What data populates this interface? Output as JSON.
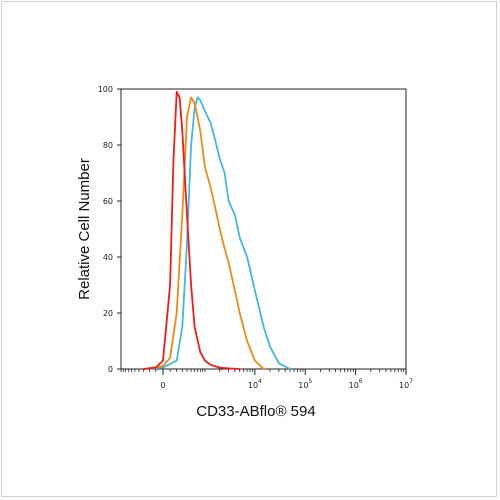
{
  "chart_data": {
    "type": "line",
    "title": "",
    "xlabel": "CD33-ABflo® 594",
    "ylabel": "Relative Cell Number",
    "ylim": [
      0,
      100
    ],
    "y_ticks": [
      "0",
      "20",
      "40",
      "60",
      "80",
      "100"
    ],
    "x_ticks": [
      {
        "base": "0",
        "exp": ""
      },
      {
        "base": "10",
        "exp": "4"
      },
      {
        "base": "10",
        "exp": "5"
      },
      {
        "base": "10",
        "exp": "6"
      },
      {
        "base": "10",
        "exp": "7"
      }
    ],
    "x_scale": "biexponential",
    "x_tick_values": [
      0,
      10000,
      100000,
      1000000,
      10000000
    ],
    "grid": false,
    "legend": "none",
    "series": [
      {
        "color": "#ee1c1c",
        "x": [
          -300,
          -100,
          0,
          100,
          150,
          200,
          250,
          300,
          400,
          500,
          600,
          800,
          1000,
          1300,
          2000,
          3000,
          5000
        ],
        "y": [
          0,
          0.5,
          3,
          30,
          75,
          99,
          97,
          85,
          55,
          30,
          15,
          6,
          3,
          1.5,
          0.5,
          0.2,
          0
        ]
      },
      {
        "color": "#f08a14",
        "x": [
          -300,
          0,
          100,
          200,
          300,
          400,
          500,
          600,
          800,
          1000,
          1300,
          1600,
          2000,
          2500,
          3000,
          4000,
          5000,
          7000,
          10000,
          15000
        ],
        "y": [
          0,
          1,
          4,
          20,
          55,
          90,
          97,
          95,
          85,
          72,
          65,
          58,
          50,
          43,
          38,
          28,
          20,
          10,
          3,
          0
        ]
      },
      {
        "color": "#3fb8e6",
        "x": [
          -300,
          0,
          200,
          300,
          400,
          500,
          600,
          700,
          800,
          1000,
          1300,
          1600,
          2000,
          2500,
          3000,
          4000,
          5000,
          7000,
          10000,
          15000,
          20000,
          30000,
          50000
        ],
        "y": [
          0,
          0.5,
          3,
          15,
          45,
          80,
          93,
          97,
          96,
          92,
          88,
          82,
          75,
          70,
          60,
          55,
          47,
          40,
          28,
          15,
          8,
          2,
          0
        ]
      }
    ]
  }
}
